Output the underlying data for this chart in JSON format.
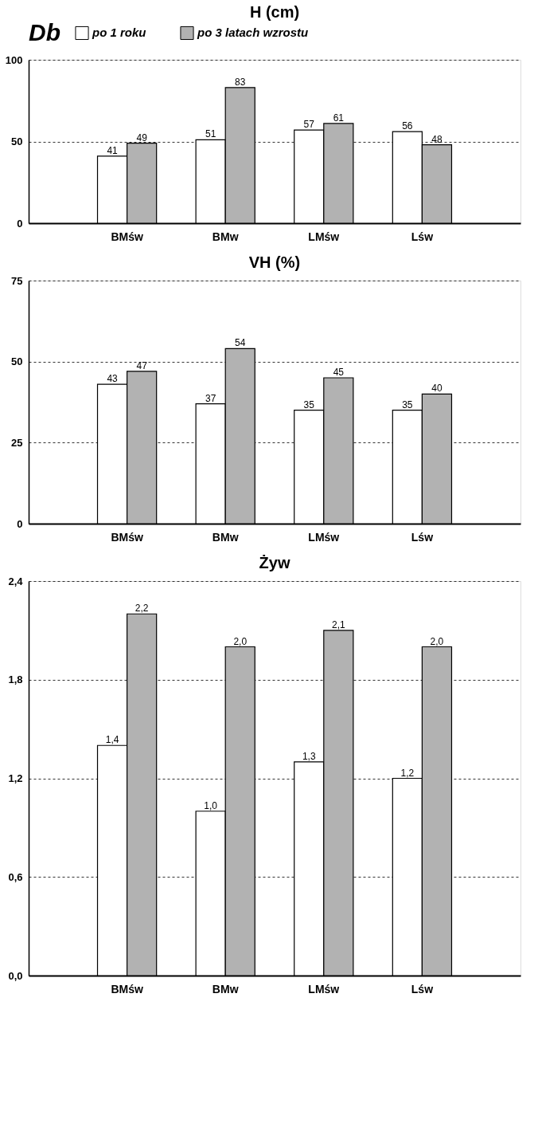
{
  "chart_data": [
    {
      "type": "bar",
      "title": "H (cm)",
      "legend_title": "Db",
      "legend": "top",
      "categories": [
        "BMśw",
        "BMw",
        "LMśw",
        "Lśw"
      ],
      "series": [
        {
          "name": "po 1 roku",
          "color": "#ffffff",
          "values": [
            41,
            51,
            57,
            56
          ]
        },
        {
          "name": "po 3 latach wzrostu",
          "color": "#b2b2b2",
          "values": [
            49,
            83,
            61,
            48
          ]
        }
      ],
      "ylim": [
        0,
        100
      ],
      "yticks": [
        0,
        50,
        100
      ],
      "grid": "y",
      "data_labels": true
    },
    {
      "type": "bar",
      "title": "VH (%)",
      "categories": [
        "BMśw",
        "BMw",
        "LMśw",
        "Lśw"
      ],
      "series": [
        {
          "color": "#ffffff",
          "values": [
            43,
            37,
            35,
            35
          ]
        },
        {
          "color": "#b2b2b2",
          "values": [
            47,
            54,
            45,
            40
          ]
        }
      ],
      "ylim": [
        0,
        75
      ],
      "yticks": [
        0,
        25,
        50,
        75
      ],
      "grid": "y",
      "data_labels": true
    },
    {
      "type": "bar",
      "title": "Żyw",
      "categories": [
        "BMśw",
        "BMw",
        "LMśw",
        "Lśw"
      ],
      "series": [
        {
          "color": "#ffffff",
          "values": [
            1.4,
            1.0,
            1.3,
            1.2
          ],
          "value_labels": [
            "1,4",
            "1,0",
            "1,3",
            "1,2"
          ]
        },
        {
          "color": "#b2b2b2",
          "values": [
            2.2,
            2.0,
            2.1,
            2.0
          ],
          "value_labels": [
            "2,2",
            "2,0",
            "2,1",
            "2,0"
          ]
        }
      ],
      "ylim": [
        0,
        2.4
      ],
      "yticks": [
        {
          "value": 0,
          "label": "0,0"
        },
        {
          "value": 0.6,
          "label": "0,6"
        },
        {
          "value": 1.2,
          "label": "1,2"
        },
        {
          "value": 1.8,
          "label": "1,8"
        },
        {
          "value": 2.4,
          "label": "2,4"
        }
      ],
      "grid": "y"
    }
  ]
}
